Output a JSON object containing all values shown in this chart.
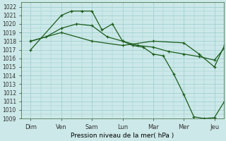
{
  "xlabel": "Pression niveau de la mer( hPa )",
  "background_color": "#cce8e8",
  "grid_color": "#99cccc",
  "line_color": "#1a5c1a",
  "ylim": [
    1009,
    1022.5
  ],
  "ytick_min": 1009,
  "ytick_max": 1022,
  "day_labels": [
    "Dim",
    "Ven",
    "Sam",
    "Lun",
    "Mar",
    "Mer",
    "Jeu"
  ],
  "num_days": 7,
  "series1_x": [
    0,
    1,
    1.33,
    1.67,
    2,
    2.33,
    2.67,
    3,
    3.33,
    3.67,
    4,
    4.33,
    4.67,
    5,
    5.33,
    5.67,
    6,
    6.33,
    6.67
  ],
  "series1_y": [
    1017,
    1021,
    1021.5,
    1021.5,
    1021.5,
    1019.3,
    1020,
    1018,
    1017.5,
    1017.3,
    1016.5,
    1016.3,
    1014.2,
    1011.8,
    1009.2,
    1009.0,
    1009.1,
    1011,
    1013
  ],
  "series2_x": [
    0,
    0.5,
    1,
    1.5,
    2,
    2.5,
    3,
    3.5,
    4,
    4.5,
    5,
    5.5,
    6,
    6.33,
    6.67
  ],
  "series2_y": [
    1018,
    1018.5,
    1019.5,
    1020.0,
    1019.8,
    1018.5,
    1018,
    1017.5,
    1017.3,
    1016.8,
    1016.5,
    1016.2,
    1015.8,
    1017.2,
    1016.8
  ],
  "series3_x": [
    0,
    1,
    2,
    3,
    4,
    5,
    5.5,
    6,
    6.33,
    6.67
  ],
  "series3_y": [
    1018,
    1019,
    1018,
    1017.5,
    1018,
    1017.8,
    1016.5,
    1015,
    1017.5,
    1016.8
  ],
  "xlabel_fontsize": 6.5,
  "ytick_fontsize": 5.5,
  "xtick_fontsize": 6.0,
  "linewidth": 0.9,
  "marker_size": 3.5
}
